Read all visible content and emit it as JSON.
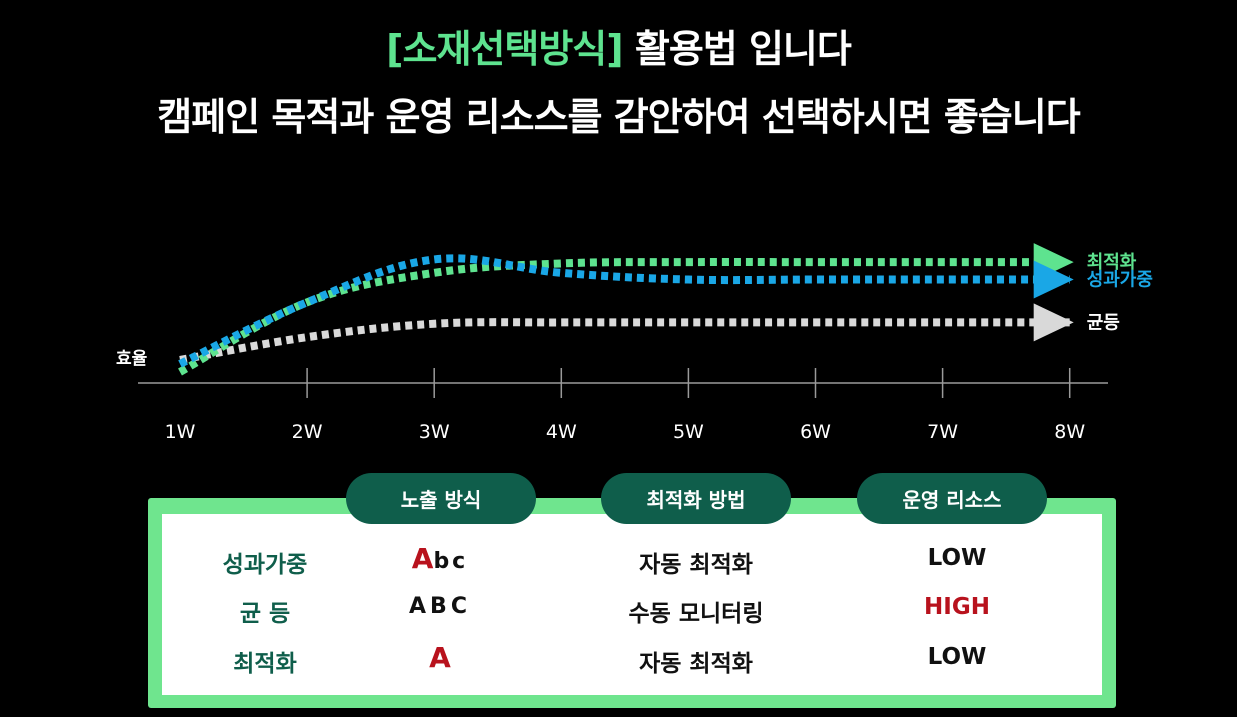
{
  "header": {
    "title_accent": "[소재선택방식]",
    "title_rest": " 활용법 입니다",
    "subtitle": "캠페인 목적과 운영 리소스를 감안하여 선택하시면 좋습니다"
  },
  "chart_data": {
    "type": "line",
    "ylabel": "효율",
    "categories": [
      "1W",
      "2W",
      "3W",
      "4W",
      "5W",
      "6W",
      "7W",
      "8W"
    ],
    "series": [
      {
        "name": "최적화",
        "color": "#5ee38f",
        "values": [
          0.0,
          0.52,
          0.74,
          0.81,
          0.82,
          0.82,
          0.82,
          0.82
        ]
      },
      {
        "name": "성과가중",
        "color": "#1aa7e6",
        "values": [
          0.06,
          0.52,
          0.84,
          0.74,
          0.69,
          0.69,
          0.69,
          0.69
        ]
      },
      {
        "name": "균등",
        "color": "#d9d9d9",
        "values": [
          0.09,
          0.26,
          0.36,
          0.37,
          0.37,
          0.37,
          0.37,
          0.37
        ]
      }
    ],
    "ylim": [
      0,
      1
    ],
    "grid": false,
    "legend": "right"
  },
  "table": {
    "headers": [
      "노출 방식",
      "최적화 방법",
      "운영 리소스"
    ],
    "rows": [
      {
        "label": "성과가중",
        "abc_first": "A",
        "abc_rest": "bc",
        "method": "자동 최적화",
        "risk": "LOW",
        "risk_high": false
      },
      {
        "label": "균 등",
        "abc_first": "",
        "abc_rest": "ABC",
        "method": "수동 모니터링",
        "risk": "HIGH",
        "risk_high": true
      },
      {
        "label": "최적화",
        "abc_first": "A",
        "abc_rest": "",
        "method": "자동 최적화",
        "risk": "LOW",
        "risk_high": false
      }
    ],
    "colors": {
      "panel_border": "#6fe58e",
      "pill": "#0f5e4b",
      "label": "#0f5e4b",
      "highlight_red": "#b8121d"
    }
  }
}
